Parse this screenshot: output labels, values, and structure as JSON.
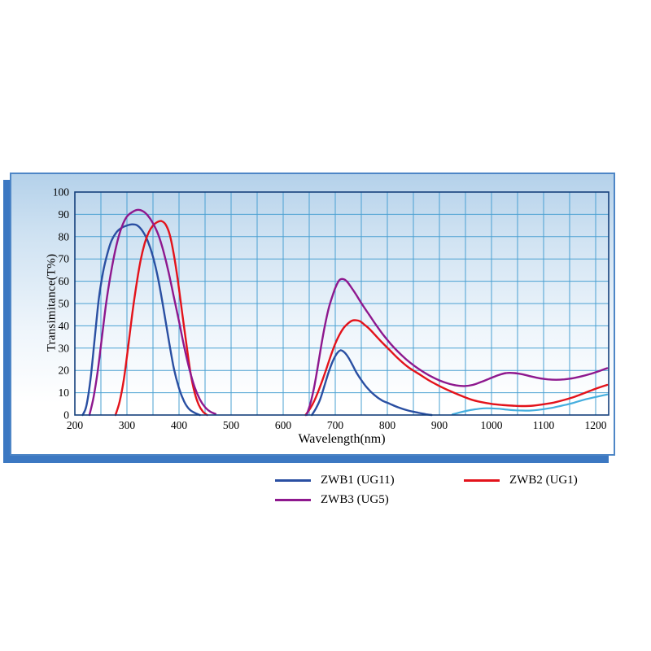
{
  "panel": {
    "border_color": "#4e86c6",
    "shadow_color": "#3c78c2",
    "bg_top": "#b4d1ea",
    "bg_bottom": "#ffffff"
  },
  "chart_data": {
    "type": "line",
    "title": "",
    "xlabel": "Wavelength(nm)",
    "ylabel": "Transimitance(T%)",
    "xlim": [
      200,
      1225
    ],
    "ylim": [
      0,
      100
    ],
    "x_ticks": [
      200,
      300,
      400,
      500,
      600,
      700,
      800,
      900,
      1000,
      1100,
      1200
    ],
    "y_ticks": [
      0,
      10,
      20,
      30,
      40,
      50,
      60,
      70,
      80,
      90,
      100
    ],
    "x_grid_step": 50,
    "grid": true,
    "grid_color": "#4aa0d2",
    "frame_color": "#15407c",
    "legend_position": "below-chart",
    "series": [
      {
        "name": "ZWB1 (UG11)",
        "color": "#2a4fa2",
        "width": 2.4,
        "segments": [
          [
            [
              215,
              0
            ],
            [
              222,
              4
            ],
            [
              230,
              16
            ],
            [
              238,
              34
            ],
            [
              246,
              52
            ],
            [
              254,
              64
            ],
            [
              262,
              72
            ],
            [
              270,
              78
            ],
            [
              280,
              82
            ],
            [
              290,
              84
            ],
            [
              300,
              85
            ],
            [
              310,
              85.5
            ],
            [
              320,
              85
            ],
            [
              330,
              82.5
            ],
            [
              340,
              78
            ],
            [
              350,
              71
            ],
            [
              360,
              61
            ],
            [
              370,
              48
            ],
            [
              380,
              34
            ],
            [
              390,
              21
            ],
            [
              400,
              12
            ],
            [
              410,
              6
            ],
            [
              420,
              2.5
            ],
            [
              430,
              1
            ],
            [
              440,
              0
            ]
          ],
          [
            [
              655,
              0
            ],
            [
              663,
              3
            ],
            [
              671,
              7
            ],
            [
              679,
              13
            ],
            [
              687,
              19
            ],
            [
              695,
              24
            ],
            [
              703,
              27.5
            ],
            [
              710,
              29
            ],
            [
              718,
              28
            ],
            [
              726,
              25.5
            ],
            [
              734,
              22
            ],
            [
              742,
              18.5
            ],
            [
              752,
              15
            ],
            [
              762,
              12
            ],
            [
              775,
              9
            ],
            [
              790,
              6.5
            ],
            [
              805,
              5
            ],
            [
              820,
              3.5
            ],
            [
              840,
              2
            ],
            [
              860,
              1
            ],
            [
              875,
              0.3
            ],
            [
              885,
              0
            ]
          ]
        ]
      },
      {
        "name": "",
        "id": "ir-tail-cyan",
        "color": "#45aede",
        "width": 2.2,
        "segments": [
          [
            [
              925,
              0.3
            ],
            [
              940,
              1.2
            ],
            [
              955,
              2
            ],
            [
              970,
              2.6
            ],
            [
              985,
              3
            ],
            [
              1000,
              3
            ],
            [
              1015,
              2.8
            ],
            [
              1030,
              2.4
            ],
            [
              1045,
              2.1
            ],
            [
              1060,
              2
            ],
            [
              1075,
              2
            ],
            [
              1090,
              2.3
            ],
            [
              1105,
              2.8
            ],
            [
              1120,
              3.4
            ],
            [
              1135,
              4.2
            ],
            [
              1150,
              5
            ],
            [
              1165,
              6
            ],
            [
              1180,
              7
            ],
            [
              1195,
              7.8
            ],
            [
              1210,
              8.6
            ],
            [
              1222,
              9.2
            ]
          ]
        ]
      },
      {
        "name": "ZWB2 (UG1)",
        "color": "#e3131b",
        "width": 2.4,
        "segments": [
          [
            [
              278,
              0
            ],
            [
              286,
              6
            ],
            [
              294,
              16
            ],
            [
              302,
              30
            ],
            [
              310,
              45
            ],
            [
              318,
              58
            ],
            [
              326,
              69
            ],
            [
              334,
              77
            ],
            [
              342,
              82
            ],
            [
              350,
              85
            ],
            [
              358,
              86.5
            ],
            [
              366,
              87
            ],
            [
              374,
              85.5
            ],
            [
              382,
              81
            ],
            [
              390,
              72
            ],
            [
              398,
              60
            ],
            [
              406,
              46
            ],
            [
              414,
              32
            ],
            [
              422,
              19
            ],
            [
              430,
              10
            ],
            [
              438,
              4.5
            ],
            [
              446,
              1.5
            ],
            [
              454,
              0
            ]
          ],
          [
            [
              643,
              0
            ],
            [
              652,
              3
            ],
            [
              660,
              6.5
            ],
            [
              668,
              11
            ],
            [
              676,
              16
            ],
            [
              684,
              21.5
            ],
            [
              692,
              27
            ],
            [
              700,
              32
            ],
            [
              708,
              36
            ],
            [
              716,
              39
            ],
            [
              724,
              41
            ],
            [
              732,
              42.3
            ],
            [
              740,
              42.5
            ],
            [
              748,
              42
            ],
            [
              756,
              40.5
            ],
            [
              766,
              38.5
            ],
            [
              778,
              35.5
            ],
            [
              790,
              32.5
            ],
            [
              805,
              29
            ],
            [
              820,
              25.5
            ],
            [
              840,
              21.5
            ],
            [
              860,
              18.5
            ],
            [
              880,
              15.5
            ],
            [
              900,
              13
            ],
            [
              920,
              10.8
            ],
            [
              940,
              8.8
            ],
            [
              960,
              7
            ],
            [
              980,
              5.8
            ],
            [
              1000,
              5
            ],
            [
              1020,
              4.5
            ],
            [
              1040,
              4.2
            ],
            [
              1060,
              4
            ],
            [
              1080,
              4.2
            ],
            [
              1100,
              4.8
            ],
            [
              1120,
              5.6
            ],
            [
              1140,
              6.8
            ],
            [
              1160,
              8.2
            ],
            [
              1180,
              10
            ],
            [
              1200,
              11.8
            ],
            [
              1222,
              13.5
            ]
          ]
        ]
      },
      {
        "name": "ZWB3 (UG5)",
        "color": "#8e188e",
        "width": 2.4,
        "segments": [
          [
            [
              228,
              0
            ],
            [
              236,
              8
            ],
            [
              244,
              20
            ],
            [
              252,
              35
            ],
            [
              260,
              50
            ],
            [
              268,
              62
            ],
            [
              276,
              72
            ],
            [
              284,
              80
            ],
            [
              292,
              85.5
            ],
            [
              300,
              89
            ],
            [
              310,
              91
            ],
            [
              320,
              92
            ],
            [
              330,
              91.5
            ],
            [
              340,
              89.5
            ],
            [
              350,
              86
            ],
            [
              360,
              81
            ],
            [
              370,
              73.5
            ],
            [
              380,
              64
            ],
            [
              390,
              53
            ],
            [
              400,
              42
            ],
            [
              410,
              30.5
            ],
            [
              420,
              20.5
            ],
            [
              430,
              12.5
            ],
            [
              440,
              7
            ],
            [
              450,
              3.5
            ],
            [
              460,
              1.5
            ],
            [
              470,
              0.5
            ]
          ],
          [
            [
              645,
              0
            ],
            [
              652,
              5
            ],
            [
              659,
              12
            ],
            [
              666,
              21
            ],
            [
              673,
              31
            ],
            [
              680,
              40
            ],
            [
              687,
              47.5
            ],
            [
              694,
              53
            ],
            [
              701,
              57.5
            ],
            [
              708,
              60.5
            ],
            [
              715,
              61
            ],
            [
              722,
              60
            ],
            [
              730,
              57.5
            ],
            [
              740,
              54
            ],
            [
              752,
              49.5
            ],
            [
              765,
              45
            ],
            [
              778,
              40.5
            ],
            [
              792,
              36
            ],
            [
              806,
              32
            ],
            [
              820,
              28.5
            ],
            [
              836,
              25
            ],
            [
              852,
              22
            ],
            [
              868,
              19.5
            ],
            [
              884,
              17.3
            ],
            [
              900,
              15.5
            ],
            [
              916,
              14.2
            ],
            [
              932,
              13.3
            ],
            [
              948,
              13
            ],
            [
              964,
              13.5
            ],
            [
              980,
              14.8
            ],
            [
              996,
              16.3
            ],
            [
              1012,
              17.8
            ],
            [
              1028,
              18.8
            ],
            [
              1044,
              18.8
            ],
            [
              1060,
              18.2
            ],
            [
              1076,
              17.3
            ],
            [
              1092,
              16.5
            ],
            [
              1108,
              16
            ],
            [
              1124,
              15.8
            ],
            [
              1140,
              16
            ],
            [
              1156,
              16.5
            ],
            [
              1172,
              17.3
            ],
            [
              1188,
              18.3
            ],
            [
              1204,
              19.5
            ],
            [
              1222,
              21
            ]
          ]
        ]
      }
    ],
    "legend": [
      {
        "label": "ZWB1 (UG11)",
        "color": "#2a4fa2"
      },
      {
        "label": "ZWB2 (UG1)",
        "color": "#e3131b"
      },
      {
        "label": "ZWB3 (UG5)",
        "color": "#8e188e"
      }
    ]
  }
}
